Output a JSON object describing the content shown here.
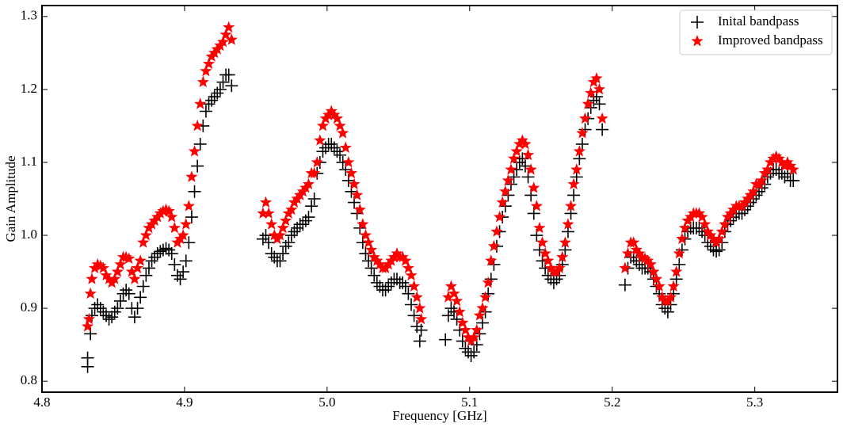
{
  "chart_data": {
    "type": "scatter",
    "x_label": "Frequency [GHz]",
    "y_label": "Gain Amplitude",
    "xlim": [
      4.8,
      5.358
    ],
    "ylim": [
      0.785,
      1.315
    ],
    "xticks": [
      4.8,
      4.9,
      {
        "value": 5,
        "label": "5.0"
      },
      5.1,
      5.2,
      5.3
    ],
    "yticks": [
      0.8,
      0.9,
      {
        "value": 1,
        "label": "1.0"
      },
      1.1,
      1.2,
      1.3
    ],
    "legend": "upper right",
    "grid": false,
    "series": [
      {
        "name": "Inital bandpass",
        "color": "#000000",
        "marker": "plus",
        "x": [
          4.832,
          4.832,
          4.834,
          4.835,
          4.837,
          4.839,
          4.841,
          4.843,
          4.845,
          4.847,
          4.849,
          4.851,
          4.853,
          4.855,
          4.857,
          4.859,
          4.861,
          4.863,
          4.865,
          4.867,
          4.869,
          4.871,
          4.873,
          4.875,
          4.877,
          4.879,
          4.881,
          4.883,
          4.885,
          4.887,
          4.889,
          4.891,
          4.893,
          4.895,
          4.897,
          4.899,
          4.901,
          4.903,
          4.905,
          4.907,
          4.909,
          4.911,
          4.913,
          4.915,
          4.917,
          4.919,
          4.921,
          4.923,
          4.925,
          4.927,
          4.929,
          4.931,
          4.933,
          4.955,
          4.957,
          4.959,
          4.961,
          4.963,
          4.965,
          4.967,
          4.969,
          4.971,
          4.973,
          4.975,
          4.977,
          4.979,
          4.981,
          4.983,
          4.985,
          4.987,
          4.989,
          4.991,
          4.993,
          4.995,
          4.997,
          4.999,
          5.001,
          5.003,
          5.005,
          5.007,
          5.009,
          5.011,
          5.013,
          5.015,
          5.017,
          5.019,
          5.021,
          5.023,
          5.025,
          5.027,
          5.029,
          5.031,
          5.033,
          5.035,
          5.037,
          5.039,
          5.041,
          5.043,
          5.045,
          5.047,
          5.049,
          5.051,
          5.053,
          5.055,
          5.057,
          5.059,
          5.061,
          5.063,
          5.065,
          5.066,
          5.083,
          5.085,
          5.087,
          5.089,
          5.091,
          5.093,
          5.095,
          5.097,
          5.099,
          5.101,
          5.103,
          5.105,
          5.107,
          5.109,
          5.111,
          5.113,
          5.115,
          5.117,
          5.119,
          5.121,
          5.123,
          5.125,
          5.127,
          5.129,
          5.131,
          5.133,
          5.135,
          5.137,
          5.139,
          5.141,
          5.143,
          5.145,
          5.147,
          5.149,
          5.151,
          5.153,
          5.155,
          5.157,
          5.159,
          5.161,
          5.163,
          5.165,
          5.167,
          5.169,
          5.171,
          5.173,
          5.175,
          5.177,
          5.179,
          5.181,
          5.183,
          5.185,
          5.187,
          5.189,
          5.191,
          5.193,
          5.209,
          5.211,
          5.213,
          5.215,
          5.217,
          5.219,
          5.221,
          5.223,
          5.225,
          5.227,
          5.229,
          5.231,
          5.233,
          5.235,
          5.237,
          5.239,
          5.241,
          5.243,
          5.245,
          5.247,
          5.249,
          5.251,
          5.253,
          5.255,
          5.257,
          5.259,
          5.261,
          5.263,
          5.265,
          5.267,
          5.269,
          5.271,
          5.273,
          5.275,
          5.277,
          5.279,
          5.281,
          5.283,
          5.285,
          5.287,
          5.289,
          5.291,
          5.293,
          5.295,
          5.297,
          5.299,
          5.301,
          5.303,
          5.305,
          5.307,
          5.309,
          5.311,
          5.313,
          5.315,
          5.317,
          5.319,
          5.321,
          5.323,
          5.325,
          5.327
        ],
        "values": [
          0.82,
          0.832,
          0.865,
          0.89,
          0.9,
          0.905,
          0.9,
          0.895,
          0.89,
          0.885,
          0.888,
          0.895,
          0.9,
          0.91,
          0.92,
          0.925,
          0.92,
          0.9,
          0.888,
          0.9,
          0.915,
          0.93,
          0.945,
          0.955,
          0.965,
          0.97,
          0.975,
          0.978,
          0.98,
          0.982,
          0.98,
          0.975,
          0.96,
          0.945,
          0.94,
          0.95,
          0.965,
          0.99,
          1.025,
          1.06,
          1.095,
          1.125,
          1.15,
          1.17,
          1.18,
          1.185,
          1.19,
          1.195,
          1.2,
          1.21,
          1.22,
          1.22,
          1.205,
          0.995,
          1.0,
          0.99,
          0.975,
          0.97,
          0.965,
          0.965,
          0.975,
          0.985,
          0.99,
          1.0,
          1.005,
          1.01,
          1.015,
          1.015,
          1.02,
          1.025,
          1.04,
          1.05,
          1.085,
          1.1,
          1.115,
          1.12,
          1.125,
          1.125,
          1.12,
          1.115,
          1.11,
          1.1,
          1.09,
          1.075,
          1.06,
          1.045,
          1.03,
          1.01,
          0.99,
          0.975,
          0.965,
          0.955,
          0.945,
          0.935,
          0.93,
          0.925,
          0.925,
          0.93,
          0.935,
          0.94,
          0.94,
          0.935,
          0.935,
          0.93,
          0.92,
          0.905,
          0.89,
          0.875,
          0.855,
          0.87,
          0.857,
          0.89,
          0.9,
          0.895,
          0.885,
          0.87,
          0.855,
          0.845,
          0.84,
          0.835,
          0.84,
          0.85,
          0.865,
          0.88,
          0.895,
          0.92,
          0.94,
          0.96,
          0.985,
          1.005,
          1.025,
          1.04,
          1.055,
          1.07,
          1.08,
          1.09,
          1.1,
          1.105,
          1.095,
          1.08,
          1.055,
          1.03,
          1.0,
          0.98,
          0.965,
          0.955,
          0.945,
          0.94,
          0.935,
          0.94,
          0.945,
          0.96,
          0.98,
          1.005,
          1.03,
          1.055,
          1.08,
          1.105,
          1.125,
          1.145,
          1.16,
          1.175,
          1.185,
          1.19,
          1.18,
          1.145,
          0.932,
          0.955,
          0.97,
          0.97,
          0.965,
          0.96,
          0.955,
          0.955,
          0.955,
          0.95,
          0.94,
          0.93,
          0.92,
          0.905,
          0.9,
          0.895,
          0.905,
          0.92,
          0.94,
          0.96,
          0.98,
          0.995,
          1.005,
          1.01,
          1.01,
          1.01,
          1.01,
          1.005,
          1.0,
          0.99,
          0.985,
          0.98,
          0.978,
          0.98,
          0.99,
          1.005,
          1.015,
          1.02,
          1.025,
          1.03,
          1.03,
          1.03,
          1.035,
          1.04,
          1.045,
          1.05,
          1.055,
          1.06,
          1.065,
          1.07,
          1.08,
          1.085,
          1.09,
          1.09,
          1.085,
          1.085,
          1.08,
          1.085,
          1.075,
          1.075
        ]
      },
      {
        "name": "Improved bandpass",
        "color": "#ff0000",
        "marker": "star",
        "x": [
          4.832,
          4.833,
          4.834,
          4.835,
          4.837,
          4.839,
          4.841,
          4.843,
          4.845,
          4.847,
          4.849,
          4.851,
          4.853,
          4.855,
          4.857,
          4.859,
          4.861,
          4.863,
          4.865,
          4.867,
          4.869,
          4.871,
          4.873,
          4.875,
          4.877,
          4.879,
          4.881,
          4.883,
          4.885,
          4.887,
          4.889,
          4.891,
          4.893,
          4.895,
          4.897,
          4.899,
          4.901,
          4.903,
          4.905,
          4.907,
          4.909,
          4.911,
          4.913,
          4.915,
          4.917,
          4.919,
          4.921,
          4.923,
          4.925,
          4.927,
          4.929,
          4.931,
          4.933,
          4.955,
          4.957,
          4.959,
          4.961,
          4.963,
          4.965,
          4.967,
          4.969,
          4.971,
          4.973,
          4.975,
          4.977,
          4.979,
          4.981,
          4.983,
          4.985,
          4.987,
          4.989,
          4.991,
          4.993,
          4.995,
          4.997,
          4.999,
          5.001,
          5.003,
          5.005,
          5.007,
          5.009,
          5.011,
          5.013,
          5.015,
          5.017,
          5.019,
          5.021,
          5.023,
          5.025,
          5.027,
          5.029,
          5.031,
          5.033,
          5.035,
          5.037,
          5.039,
          5.041,
          5.043,
          5.045,
          5.047,
          5.049,
          5.051,
          5.053,
          5.055,
          5.057,
          5.059,
          5.061,
          5.063,
          5.065,
          5.066,
          5.085,
          5.087,
          5.089,
          5.091,
          5.093,
          5.095,
          5.097,
          5.099,
          5.101,
          5.103,
          5.105,
          5.107,
          5.109,
          5.111,
          5.113,
          5.115,
          5.117,
          5.119,
          5.121,
          5.123,
          5.125,
          5.127,
          5.129,
          5.131,
          5.133,
          5.135,
          5.137,
          5.139,
          5.141,
          5.143,
          5.145,
          5.147,
          5.149,
          5.151,
          5.153,
          5.155,
          5.157,
          5.159,
          5.161,
          5.163,
          5.165,
          5.167,
          5.169,
          5.171,
          5.173,
          5.175,
          5.177,
          5.179,
          5.181,
          5.183,
          5.185,
          5.187,
          5.189,
          5.191,
          5.193,
          5.209,
          5.211,
          5.213,
          5.215,
          5.217,
          5.219,
          5.221,
          5.223,
          5.225,
          5.227,
          5.229,
          5.231,
          5.233,
          5.235,
          5.237,
          5.239,
          5.241,
          5.243,
          5.245,
          5.247,
          5.249,
          5.251,
          5.253,
          5.255,
          5.257,
          5.259,
          5.261,
          5.263,
          5.265,
          5.267,
          5.269,
          5.271,
          5.273,
          5.275,
          5.277,
          5.279,
          5.281,
          5.283,
          5.285,
          5.287,
          5.289,
          5.291,
          5.293,
          5.295,
          5.297,
          5.299,
          5.301,
          5.303,
          5.305,
          5.307,
          5.309,
          5.311,
          5.313,
          5.315,
          5.317,
          5.319,
          5.321,
          5.323,
          5.325,
          5.327
        ],
        "values": [
          0.875,
          0.885,
          0.92,
          0.94,
          0.955,
          0.96,
          0.958,
          0.955,
          0.945,
          0.94,
          0.935,
          0.94,
          0.95,
          0.96,
          0.97,
          0.97,
          0.968,
          0.95,
          0.94,
          0.955,
          0.965,
          0.99,
          1.0,
          1.01,
          1.015,
          1.02,
          1.025,
          1.03,
          1.033,
          1.035,
          1.033,
          1.025,
          1.01,
          0.99,
          0.995,
          1.0,
          1.015,
          1.04,
          1.08,
          1.115,
          1.15,
          1.18,
          1.21,
          1.225,
          1.235,
          1.245,
          1.25,
          1.255,
          1.26,
          1.265,
          1.275,
          1.285,
          1.268,
          1.03,
          1.045,
          1.03,
          1.015,
          1.0,
          0.995,
          1.0,
          1.01,
          1.02,
          1.03,
          1.035,
          1.045,
          1.05,
          1.055,
          1.06,
          1.065,
          1.07,
          1.085,
          1.085,
          1.1,
          1.13,
          1.15,
          1.16,
          1.165,
          1.17,
          1.165,
          1.16,
          1.15,
          1.14,
          1.12,
          1.1,
          1.085,
          1.07,
          1.055,
          1.035,
          1.015,
          1.0,
          0.99,
          0.98,
          0.97,
          0.965,
          0.96,
          0.955,
          0.955,
          0.96,
          0.965,
          0.97,
          0.975,
          0.97,
          0.97,
          0.965,
          0.955,
          0.945,
          0.93,
          0.915,
          0.9,
          0.885,
          0.915,
          0.93,
          0.92,
          0.91,
          0.895,
          0.88,
          0.87,
          0.86,
          0.855,
          0.86,
          0.87,
          0.89,
          0.9,
          0.915,
          0.935,
          0.965,
          0.985,
          1.005,
          1.025,
          1.045,
          1.06,
          1.075,
          1.09,
          1.105,
          1.115,
          1.125,
          1.13,
          1.125,
          1.11,
          1.09,
          1.065,
          1.04,
          1.01,
          0.99,
          0.975,
          0.965,
          0.955,
          0.95,
          0.95,
          0.955,
          0.97,
          0.99,
          1.015,
          1.04,
          1.07,
          1.09,
          1.115,
          1.14,
          1.16,
          1.18,
          1.195,
          1.21,
          1.215,
          1.2,
          1.16,
          0.955,
          0.975,
          0.99,
          0.99,
          0.98,
          0.975,
          0.97,
          0.968,
          0.965,
          0.96,
          0.95,
          0.94,
          0.93,
          0.915,
          0.91,
          0.91,
          0.915,
          0.93,
          0.95,
          0.975,
          0.995,
          1.01,
          1.02,
          1.025,
          1.03,
          1.03,
          1.03,
          1.025,
          1.015,
          1.005,
          1.0,
          0.995,
          0.99,
          0.995,
          1.005,
          1.015,
          1.025,
          1.03,
          1.035,
          1.04,
          1.04,
          1.04,
          1.045,
          1.05,
          1.055,
          1.06,
          1.07,
          1.07,
          1.075,
          1.085,
          1.09,
          1.1,
          1.105,
          1.108,
          1.105,
          1.1,
          1.095,
          1.1,
          1.095,
          1.09
        ]
      }
    ]
  }
}
